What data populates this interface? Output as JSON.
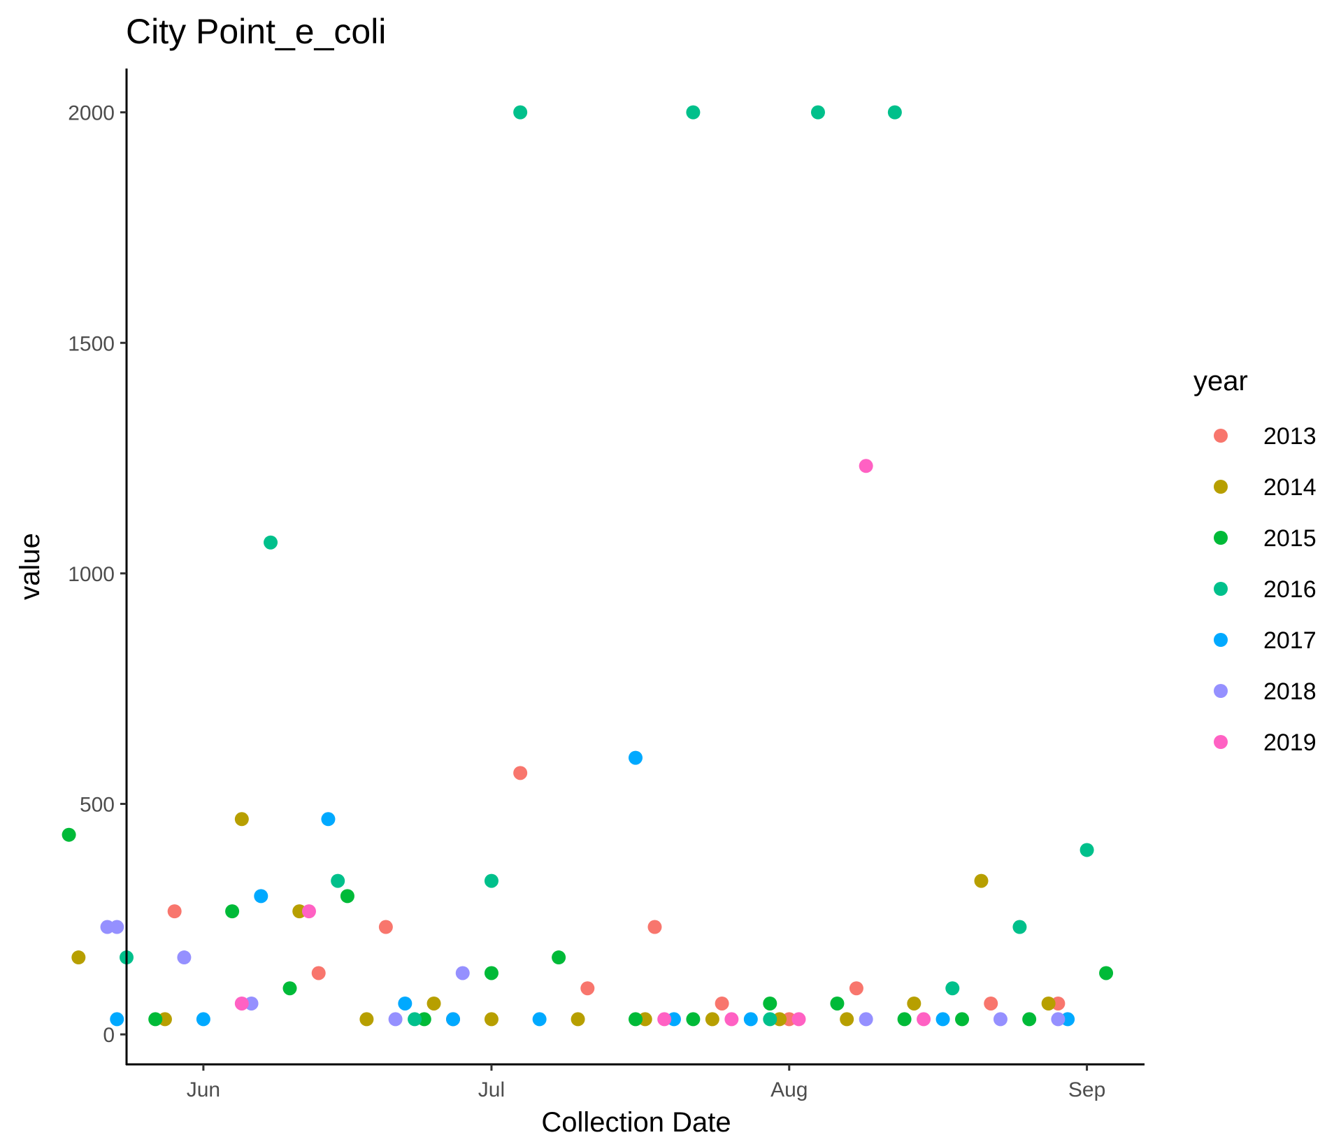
{
  "chart_data": {
    "type": "scatter",
    "title": "City Point_e_coli",
    "xlabel": "Collection Date",
    "ylabel": "value",
    "x_axis": "date (month-day, seasons overlaid)",
    "xlim": [
      "05-24",
      "09-07"
    ],
    "ylim": [
      -65,
      2095
    ],
    "y_ticks": [
      0,
      500,
      1000,
      1500,
      2000
    ],
    "x_ticks": [
      {
        "date": "06-01",
        "label": "Jun"
      },
      {
        "date": "07-01",
        "label": "Jul"
      },
      {
        "date": "08-01",
        "label": "Aug"
      },
      {
        "date": "09-01",
        "label": "Sep"
      }
    ],
    "grid": false,
    "legend": {
      "title": "year",
      "position": "right"
    },
    "series": [
      {
        "name": "2013",
        "color": "#F8766D",
        "points": [
          [
            "05-29",
            267
          ],
          [
            "06-13",
            133
          ],
          [
            "06-20",
            233
          ],
          [
            "06-27",
            33
          ],
          [
            "07-04",
            567
          ],
          [
            "07-11",
            100
          ],
          [
            "07-18",
            233
          ],
          [
            "07-25",
            67
          ],
          [
            "08-01",
            33
          ],
          [
            "08-08",
            100
          ],
          [
            "08-22",
            67
          ],
          [
            "08-29",
            67
          ]
        ]
      },
      {
        "name": "2014",
        "color": "#B79F00",
        "points": [
          [
            "05-19",
            167
          ],
          [
            "05-28",
            33
          ],
          [
            "06-05",
            467
          ],
          [
            "06-11",
            267
          ],
          [
            "06-18",
            33
          ],
          [
            "06-25",
            67
          ],
          [
            "07-01",
            33
          ],
          [
            "07-10",
            33
          ],
          [
            "07-17",
            33
          ],
          [
            "07-24",
            33
          ],
          [
            "07-31",
            33
          ],
          [
            "08-07",
            33
          ],
          [
            "08-14",
            67
          ],
          [
            "08-21",
            333
          ],
          [
            "08-28",
            67
          ]
        ]
      },
      {
        "name": "2015",
        "color": "#00BA38",
        "points": [
          [
            "05-18",
            433
          ],
          [
            "05-27",
            33
          ],
          [
            "06-04",
            267
          ],
          [
            "06-10",
            100
          ],
          [
            "06-16",
            300
          ],
          [
            "06-24",
            33
          ],
          [
            "07-01",
            133
          ],
          [
            "07-08",
            167
          ],
          [
            "07-16",
            33
          ],
          [
            "07-22",
            33
          ],
          [
            "07-30",
            67
          ],
          [
            "08-06",
            67
          ],
          [
            "08-13",
            33
          ],
          [
            "08-19",
            33
          ],
          [
            "08-26",
            33
          ],
          [
            "09-03",
            133
          ]
        ]
      },
      {
        "name": "2016",
        "color": "#00C08B",
        "points": [
          [
            "05-24",
            167
          ],
          [
            "06-08",
            1067
          ],
          [
            "06-15",
            333
          ],
          [
            "06-23",
            33
          ],
          [
            "07-01",
            333
          ],
          [
            "07-04",
            2000
          ],
          [
            "07-22",
            2000
          ],
          [
            "07-30",
            33
          ],
          [
            "08-04",
            2000
          ],
          [
            "08-12",
            2000
          ],
          [
            "08-18",
            100
          ],
          [
            "08-25",
            233
          ],
          [
            "09-01",
            400
          ]
        ]
      },
      {
        "name": "2017",
        "color": "#00A9FF",
        "points": [
          [
            "05-23",
            33
          ],
          [
            "06-01",
            33
          ],
          [
            "06-07",
            300
          ],
          [
            "06-14",
            467
          ],
          [
            "06-22",
            67
          ],
          [
            "06-27",
            33
          ],
          [
            "07-06",
            33
          ],
          [
            "07-16",
            600
          ],
          [
            "07-20",
            33
          ],
          [
            "07-28",
            33
          ],
          [
            "08-17",
            33
          ],
          [
            "08-30",
            33
          ]
        ]
      },
      {
        "name": "2018",
        "color": "#9590FF",
        "points": [
          [
            "05-22",
            233
          ],
          [
            "05-23",
            233
          ],
          [
            "05-30",
            167
          ],
          [
            "06-06",
            67
          ],
          [
            "06-21",
            33
          ],
          [
            "06-28",
            133
          ],
          [
            "08-09",
            33
          ],
          [
            "08-23",
            33
          ],
          [
            "08-29",
            33
          ]
        ]
      },
      {
        "name": "2019",
        "color": "#FF61C3",
        "points": [
          [
            "06-05",
            67
          ],
          [
            "06-12",
            267
          ],
          [
            "07-19",
            33
          ],
          [
            "07-26",
            33
          ],
          [
            "08-02",
            33
          ],
          [
            "08-09",
            1233
          ],
          [
            "08-15",
            33
          ]
        ]
      }
    ]
  }
}
